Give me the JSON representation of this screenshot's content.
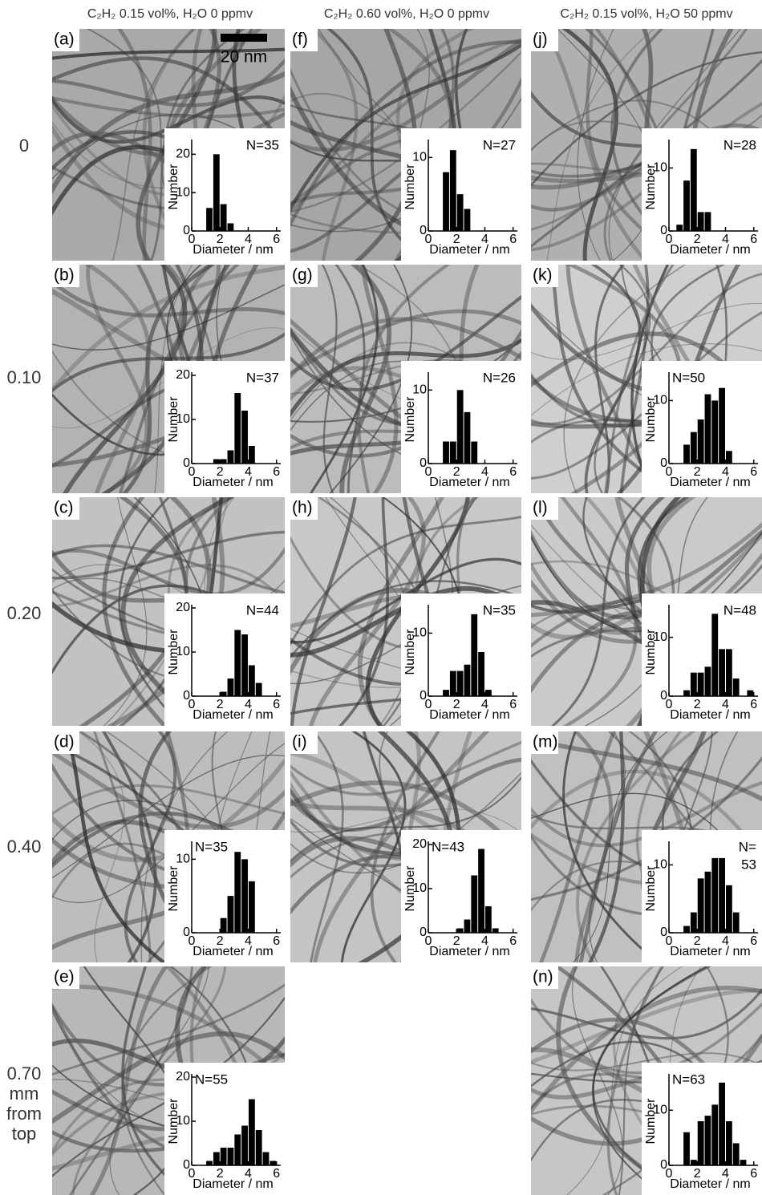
{
  "column_headers": [
    "C₂H₂ 0.15 vol%, H₂O 0 ppmv",
    "C₂H₂ 0.60 vol%, H₂O 0 ppmv",
    "C₂H₂ 0.15 vol%, H₂O 50 ppmv"
  ],
  "row_labels": [
    "0",
    "0.10",
    "0.20",
    "0.40",
    "0.70"
  ],
  "row_label_unit": [
    "mm",
    "from",
    "top"
  ],
  "scale_bar": "20 nm",
  "chart_data": [
    {
      "type": "histogram",
      "panel": "(a)",
      "annotation": [
        "N=35"
      ],
      "bins": [
        1.0,
        1.5,
        2.0,
        2.5,
        3.0
      ],
      "counts": [
        6,
        20,
        7,
        2
      ],
      "color": "#000000",
      "xlim": [
        0,
        6.3
      ],
      "xticks": [
        0,
        2,
        4,
        6
      ],
      "ylim": [
        0,
        23
      ],
      "yticks": [
        0,
        10,
        20
      ],
      "xlabel": "Diameter / nm",
      "ylabel": "Number"
    },
    {
      "type": "histogram",
      "panel": "(b)",
      "annotation": [
        "N=37"
      ],
      "bins": [
        1.5,
        2.0,
        2.5,
        3.0,
        3.5,
        4.0,
        4.5
      ],
      "counts": [
        1,
        1,
        3,
        16,
        12,
        4
      ],
      "color": "#000000",
      "xlim": [
        0,
        6.3
      ],
      "xticks": [
        0,
        2,
        4,
        6
      ],
      "ylim": [
        0,
        20
      ],
      "yticks": [
        0,
        10,
        20
      ],
      "xlabel": "Diameter / nm",
      "ylabel": "Number"
    },
    {
      "type": "histogram",
      "panel": "(c)",
      "annotation": [
        "N=44"
      ],
      "bins": [
        2.0,
        2.5,
        3.0,
        3.5,
        4.0,
        4.5,
        5.0
      ],
      "counts": [
        1,
        4,
        15,
        14,
        7,
        3
      ],
      "color": "#000000",
      "xlim": [
        0,
        6.3
      ],
      "xticks": [
        0,
        2,
        4,
        6
      ],
      "ylim": [
        0,
        20
      ],
      "yticks": [
        0,
        10,
        20
      ],
      "xlabel": "Diameter / nm",
      "ylabel": "Number"
    },
    {
      "type": "histogram",
      "panel": "(d)",
      "annotation": [
        "N=35"
      ],
      "bins": [
        2.0,
        2.5,
        3.0,
        3.5,
        4.0,
        4.5
      ],
      "counts": [
        2,
        5,
        11,
        10,
        7
      ],
      "color": "#000000",
      "xlim": [
        0,
        6.3
      ],
      "xticks": [
        0,
        2,
        4,
        6
      ],
      "ylim": [
        0,
        12
      ],
      "yticks": [
        0,
        10
      ],
      "xlabel": "Diameter / nm",
      "ylabel": "Number"
    },
    {
      "type": "histogram",
      "panel": "(e)",
      "annotation": [
        "N=55"
      ],
      "bins": [
        1.0,
        1.5,
        2.0,
        2.5,
        3.0,
        3.5,
        4.0,
        4.5,
        5.0,
        5.5,
        6.0
      ],
      "counts": [
        1,
        3,
        4,
        4,
        7,
        9,
        15,
        8,
        3,
        1
      ],
      "color": "#000000",
      "xlim": [
        0,
        6.3
      ],
      "xticks": [
        0,
        2,
        4,
        6
      ],
      "ylim": [
        0,
        20
      ],
      "yticks": [
        0,
        10,
        20
      ],
      "xlabel": "Diameter / nm",
      "ylabel": "Number"
    },
    {
      "type": "histogram",
      "panel": "(f)",
      "annotation": [
        "N=27"
      ],
      "bins": [
        1.0,
        1.5,
        2.0,
        2.5,
        3.0
      ],
      "counts": [
        8,
        11,
        5,
        3
      ],
      "color": "#000000",
      "xlim": [
        0,
        6.3
      ],
      "xticks": [
        0,
        2,
        4,
        6
      ],
      "ylim": [
        0,
        12
      ],
      "yticks": [
        0,
        10
      ],
      "xlabel": "Diameter / nm",
      "ylabel": "Number"
    },
    {
      "type": "histogram",
      "panel": "(g)",
      "annotation": [
        "N=26"
      ],
      "bins": [
        1.0,
        1.5,
        2.0,
        2.5,
        3.0,
        3.5
      ],
      "counts": [
        3,
        3,
        10,
        7,
        3
      ],
      "color": "#000000",
      "xlim": [
        0,
        6.3
      ],
      "xticks": [
        0,
        2,
        4,
        6
      ],
      "ylim": [
        0,
        12
      ],
      "yticks": [
        0,
        10
      ],
      "xlabel": "Diameter / nm",
      "ylabel": "Number"
    },
    {
      "type": "histogram",
      "panel": "(h)",
      "annotation": [
        "N=35"
      ],
      "bins": [
        1.0,
        1.5,
        2.0,
        2.5,
        3.0,
        3.5,
        4.0,
        4.5
      ],
      "counts": [
        1,
        4,
        4,
        5,
        13,
        7,
        1
      ],
      "color": "#000000",
      "xlim": [
        0,
        6.3
      ],
      "xticks": [
        0,
        2,
        4,
        6
      ],
      "ylim": [
        0,
        14
      ],
      "yticks": [
        0,
        10
      ],
      "xlabel": "Diameter / nm",
      "ylabel": "Number"
    },
    {
      "type": "histogram",
      "panel": "(i)",
      "annotation": [
        "N=43"
      ],
      "bins": [
        2.0,
        2.5,
        3.0,
        3.5,
        4.0,
        4.5,
        5.0
      ],
      "counts": [
        1,
        3,
        13,
        19,
        6,
        1
      ],
      "color": "#000000",
      "xlim": [
        0,
        6.3
      ],
      "xticks": [
        0,
        2,
        4,
        6
      ],
      "ylim": [
        0,
        20
      ],
      "yticks": [
        0,
        10,
        20
      ],
      "xlabel": "Diameter / nm",
      "ylabel": "Number"
    },
    {
      "type": "histogram",
      "panel": "(j)",
      "annotation": [
        "N=28"
      ],
      "bins": [
        0.5,
        1.0,
        1.5,
        2.0,
        2.5,
        3.0
      ],
      "counts": [
        1,
        8,
        13,
        3,
        3
      ],
      "color": "#000000",
      "xlim": [
        0,
        6.3
      ],
      "xticks": [
        0,
        2,
        4,
        6
      ],
      "ylim": [
        0,
        14
      ],
      "yticks": [
        0,
        10
      ],
      "xlabel": "Diameter / nm",
      "ylabel": "Number"
    },
    {
      "type": "histogram",
      "panel": "(k)",
      "annotation": [
        "N=50"
      ],
      "bins": [
        1.0,
        1.5,
        2.0,
        2.5,
        3.0,
        3.5,
        4.0,
        4.5
      ],
      "counts": [
        3,
        5,
        7,
        11,
        10,
        12,
        2
      ],
      "color": "#000000",
      "xlim": [
        0,
        6.3
      ],
      "xticks": [
        0,
        2,
        4,
        6
      ],
      "ylim": [
        0,
        14
      ],
      "yticks": [
        0,
        10
      ],
      "xlabel": "Diameter / nm",
      "ylabel": "Number"
    },
    {
      "type": "histogram",
      "panel": "(l)",
      "annotation": [
        "N=48"
      ],
      "bins": [
        1.0,
        1.5,
        2.0,
        2.5,
        3.0,
        3.5,
        4.0,
        4.5,
        5.0,
        5.5,
        6.0
      ],
      "counts": [
        1,
        4,
        4,
        5,
        14,
        8,
        8,
        3,
        0,
        1
      ],
      "color": "#000000",
      "xlim": [
        0,
        6.3
      ],
      "xticks": [
        0,
        2,
        4,
        6
      ],
      "ylim": [
        0,
        15
      ],
      "yticks": [
        0,
        10
      ],
      "xlabel": "Diameter / nm",
      "ylabel": "Number"
    },
    {
      "type": "histogram",
      "panel": "(m)",
      "annotation": [
        "N=",
        "53"
      ],
      "bins": [
        1.0,
        1.5,
        2.0,
        2.5,
        3.0,
        3.5,
        4.0,
        4.5,
        5.0
      ],
      "counts": [
        1,
        3,
        8,
        9,
        11,
        11,
        7,
        3
      ],
      "color": "#000000",
      "xlim": [
        0,
        6.3
      ],
      "xticks": [
        0,
        2,
        4,
        6
      ],
      "ylim": [
        0,
        13
      ],
      "yticks": [
        0,
        10
      ],
      "xlabel": "Diameter / nm",
      "ylabel": "Number"
    },
    {
      "type": "histogram",
      "panel": "(n)",
      "annotation": [
        "N=63"
      ],
      "bins": [
        1.0,
        1.5,
        2.0,
        2.5,
        3.0,
        3.5,
        4.0,
        4.5,
        5.0,
        5.5
      ],
      "counts": [
        6,
        1,
        8,
        9,
        11,
        15,
        8,
        4,
        1
      ],
      "color": "#000000",
      "xlim": [
        0,
        6.3
      ],
      "xticks": [
        0,
        2,
        4,
        6
      ],
      "ylim": [
        0,
        16
      ],
      "yticks": [
        0,
        10
      ],
      "xlabel": "Diameter / nm",
      "ylabel": "Number"
    }
  ]
}
